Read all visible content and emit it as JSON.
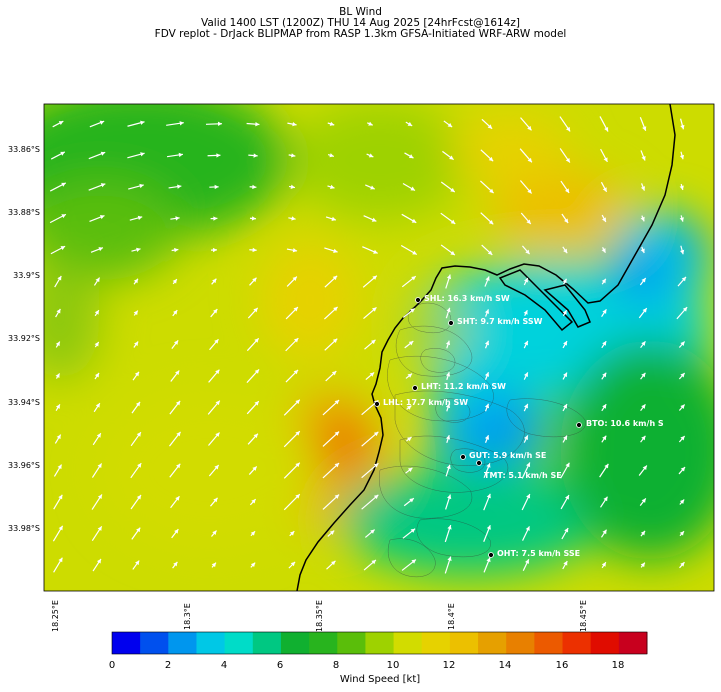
{
  "header": {
    "line1": "BL Wind",
    "line2": "Valid 1400 LST (1200Z) THU 14 Aug 2025 [24hrFcst@1614z]",
    "line3": "FDV replot - DrJack BLIPMAP from RASP 1.3km GFSA-Initiated WRF-ARW model"
  },
  "map": {
    "lat_labels": [
      "33.86°S",
      "33.88°S",
      "33.9°S",
      "33.92°S",
      "33.94°S",
      "33.96°S",
      "33.98°S"
    ],
    "lon_labels": [
      "18.25°E",
      "18.3°E",
      "18.35°E",
      "18.4°E",
      "18.45°E"
    ],
    "stations": [
      {
        "label": "SHL: 16.3 km/h SW"
      },
      {
        "label": "SHT: 9.7 km/h SSW"
      },
      {
        "label": "LHT: 11.2 km/h SW"
      },
      {
        "label": "LHL: 17.7 km/h SW"
      },
      {
        "label": "BTO: 10.6 km/h S"
      },
      {
        "label": "GUT: 5.9 km/h SE"
      },
      {
        "label": "TMT: 5.1 km/h SE"
      },
      {
        "label": "OHT: 7.5 km/h SSE"
      }
    ]
  },
  "colorbar": {
    "label": "Wind Speed [kt]",
    "ticks": [
      "0",
      "2",
      "4",
      "6",
      "8",
      "10",
      "12",
      "14",
      "16",
      "18"
    ],
    "colors": [
      "#0000ee",
      "#0050ee",
      "#0096ee",
      "#00c8e6",
      "#00dcc8",
      "#00c882",
      "#10b030",
      "#28b41e",
      "#5abe0a",
      "#9ed200",
      "#d2dc00",
      "#e6d200",
      "#ecc000",
      "#e6a000",
      "#e88000",
      "#ec5a00",
      "#ec3000",
      "#e00c00",
      "#c8001e"
    ]
  }
}
